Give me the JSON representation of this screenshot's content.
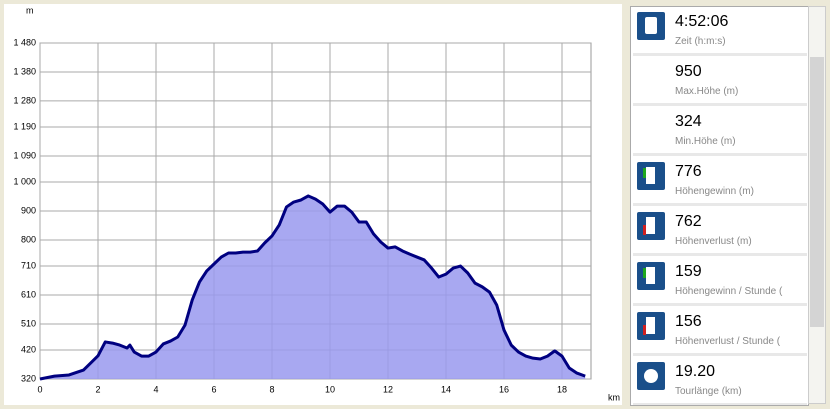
{
  "chart_data": {
    "type": "area",
    "y_unit": "m",
    "x_unit": "km",
    "x": [
      0,
      0.5,
      1,
      1.5,
      2,
      2.25,
      2.5,
      2.75,
      3,
      3.1,
      3.25,
      3.5,
      3.75,
      4,
      4.25,
      4.5,
      4.75,
      5,
      5.25,
      5.5,
      5.75,
      6,
      6.25,
      6.5,
      6.75,
      7,
      7.25,
      7.5,
      7.75,
      8,
      8.25,
      8.5,
      8.75,
      9,
      9.25,
      9.5,
      9.75,
      10,
      10.25,
      10.5,
      10.75,
      11,
      11.25,
      11.5,
      11.75,
      12,
      12.25,
      12.5,
      12.75,
      13,
      13.25,
      13.5,
      13.75,
      14,
      14.25,
      14.5,
      14.75,
      15,
      15.25,
      15.5,
      15.75,
      16,
      16.25,
      16.5,
      16.75,
      17,
      17.25,
      17.5,
      17.75,
      18,
      18.25,
      18.5,
      18.8
    ],
    "series": [
      {
        "color": "#9999ee",
        "line_color": "#000080",
        "values": [
          320,
          330,
          334,
          351,
          400,
          448,
          444,
          437,
          427,
          437,
          413,
          399,
          399,
          413,
          441,
          451,
          465,
          506,
          593,
          655,
          693,
          717,
          741,
          755,
          755,
          758,
          758,
          762,
          790,
          814,
          852,
          914,
          931,
          938,
          952,
          941,
          924,
          896,
          917,
          917,
          896,
          862,
          862,
          821,
          793,
          772,
          776,
          762,
          751,
          741,
          731,
          703,
          672,
          682,
          703,
          710,
          686,
          651,
          638,
          620,
          575,
          489,
          437,
          413,
          399,
          392,
          389,
          399,
          417,
          399,
          358,
          341,
          330
        ]
      }
    ],
    "xlim": [
      0,
      19
    ],
    "xticks": [
      0,
      2,
      4,
      6,
      8,
      10,
      12,
      14,
      16,
      18
    ],
    "ylim": [
      320,
      1480
    ],
    "yticks": [
      320,
      420,
      510,
      610,
      710,
      800,
      900,
      {
        "value": 1000,
        "label": "1 000"
      },
      {
        "value": 1090,
        "label": "1 090"
      },
      {
        "value": 1190,
        "label": "1 190"
      },
      {
        "value": 1280,
        "label": "1 280"
      },
      {
        "value": 1380,
        "label": "1 380"
      },
      {
        "value": 1480,
        "label": "1 480"
      }
    ],
    "grid": true
  },
  "stats": [
    {
      "value": "4:52:06",
      "label": "Zeit (h:m:s)",
      "icon": "time"
    },
    {
      "value": "950",
      "label": "Max.Höhe (m)"
    },
    {
      "value": "324",
      "label": "Min.Höhe (m)"
    },
    {
      "value": "776",
      "label": "Höhengewinn (m)",
      "icon": "up"
    },
    {
      "value": "762",
      "label": "Höhenverlust (m)",
      "icon": "down"
    },
    {
      "value": "159",
      "label": "Höhengewinn  / Stunde (",
      "icon": "up"
    },
    {
      "value": "156",
      "label": "Höhenverlust / Stunde (",
      "icon": "down"
    },
    {
      "value": "19.20",
      "label": "Tourlänge (km)",
      "icon": "dist"
    }
  ]
}
